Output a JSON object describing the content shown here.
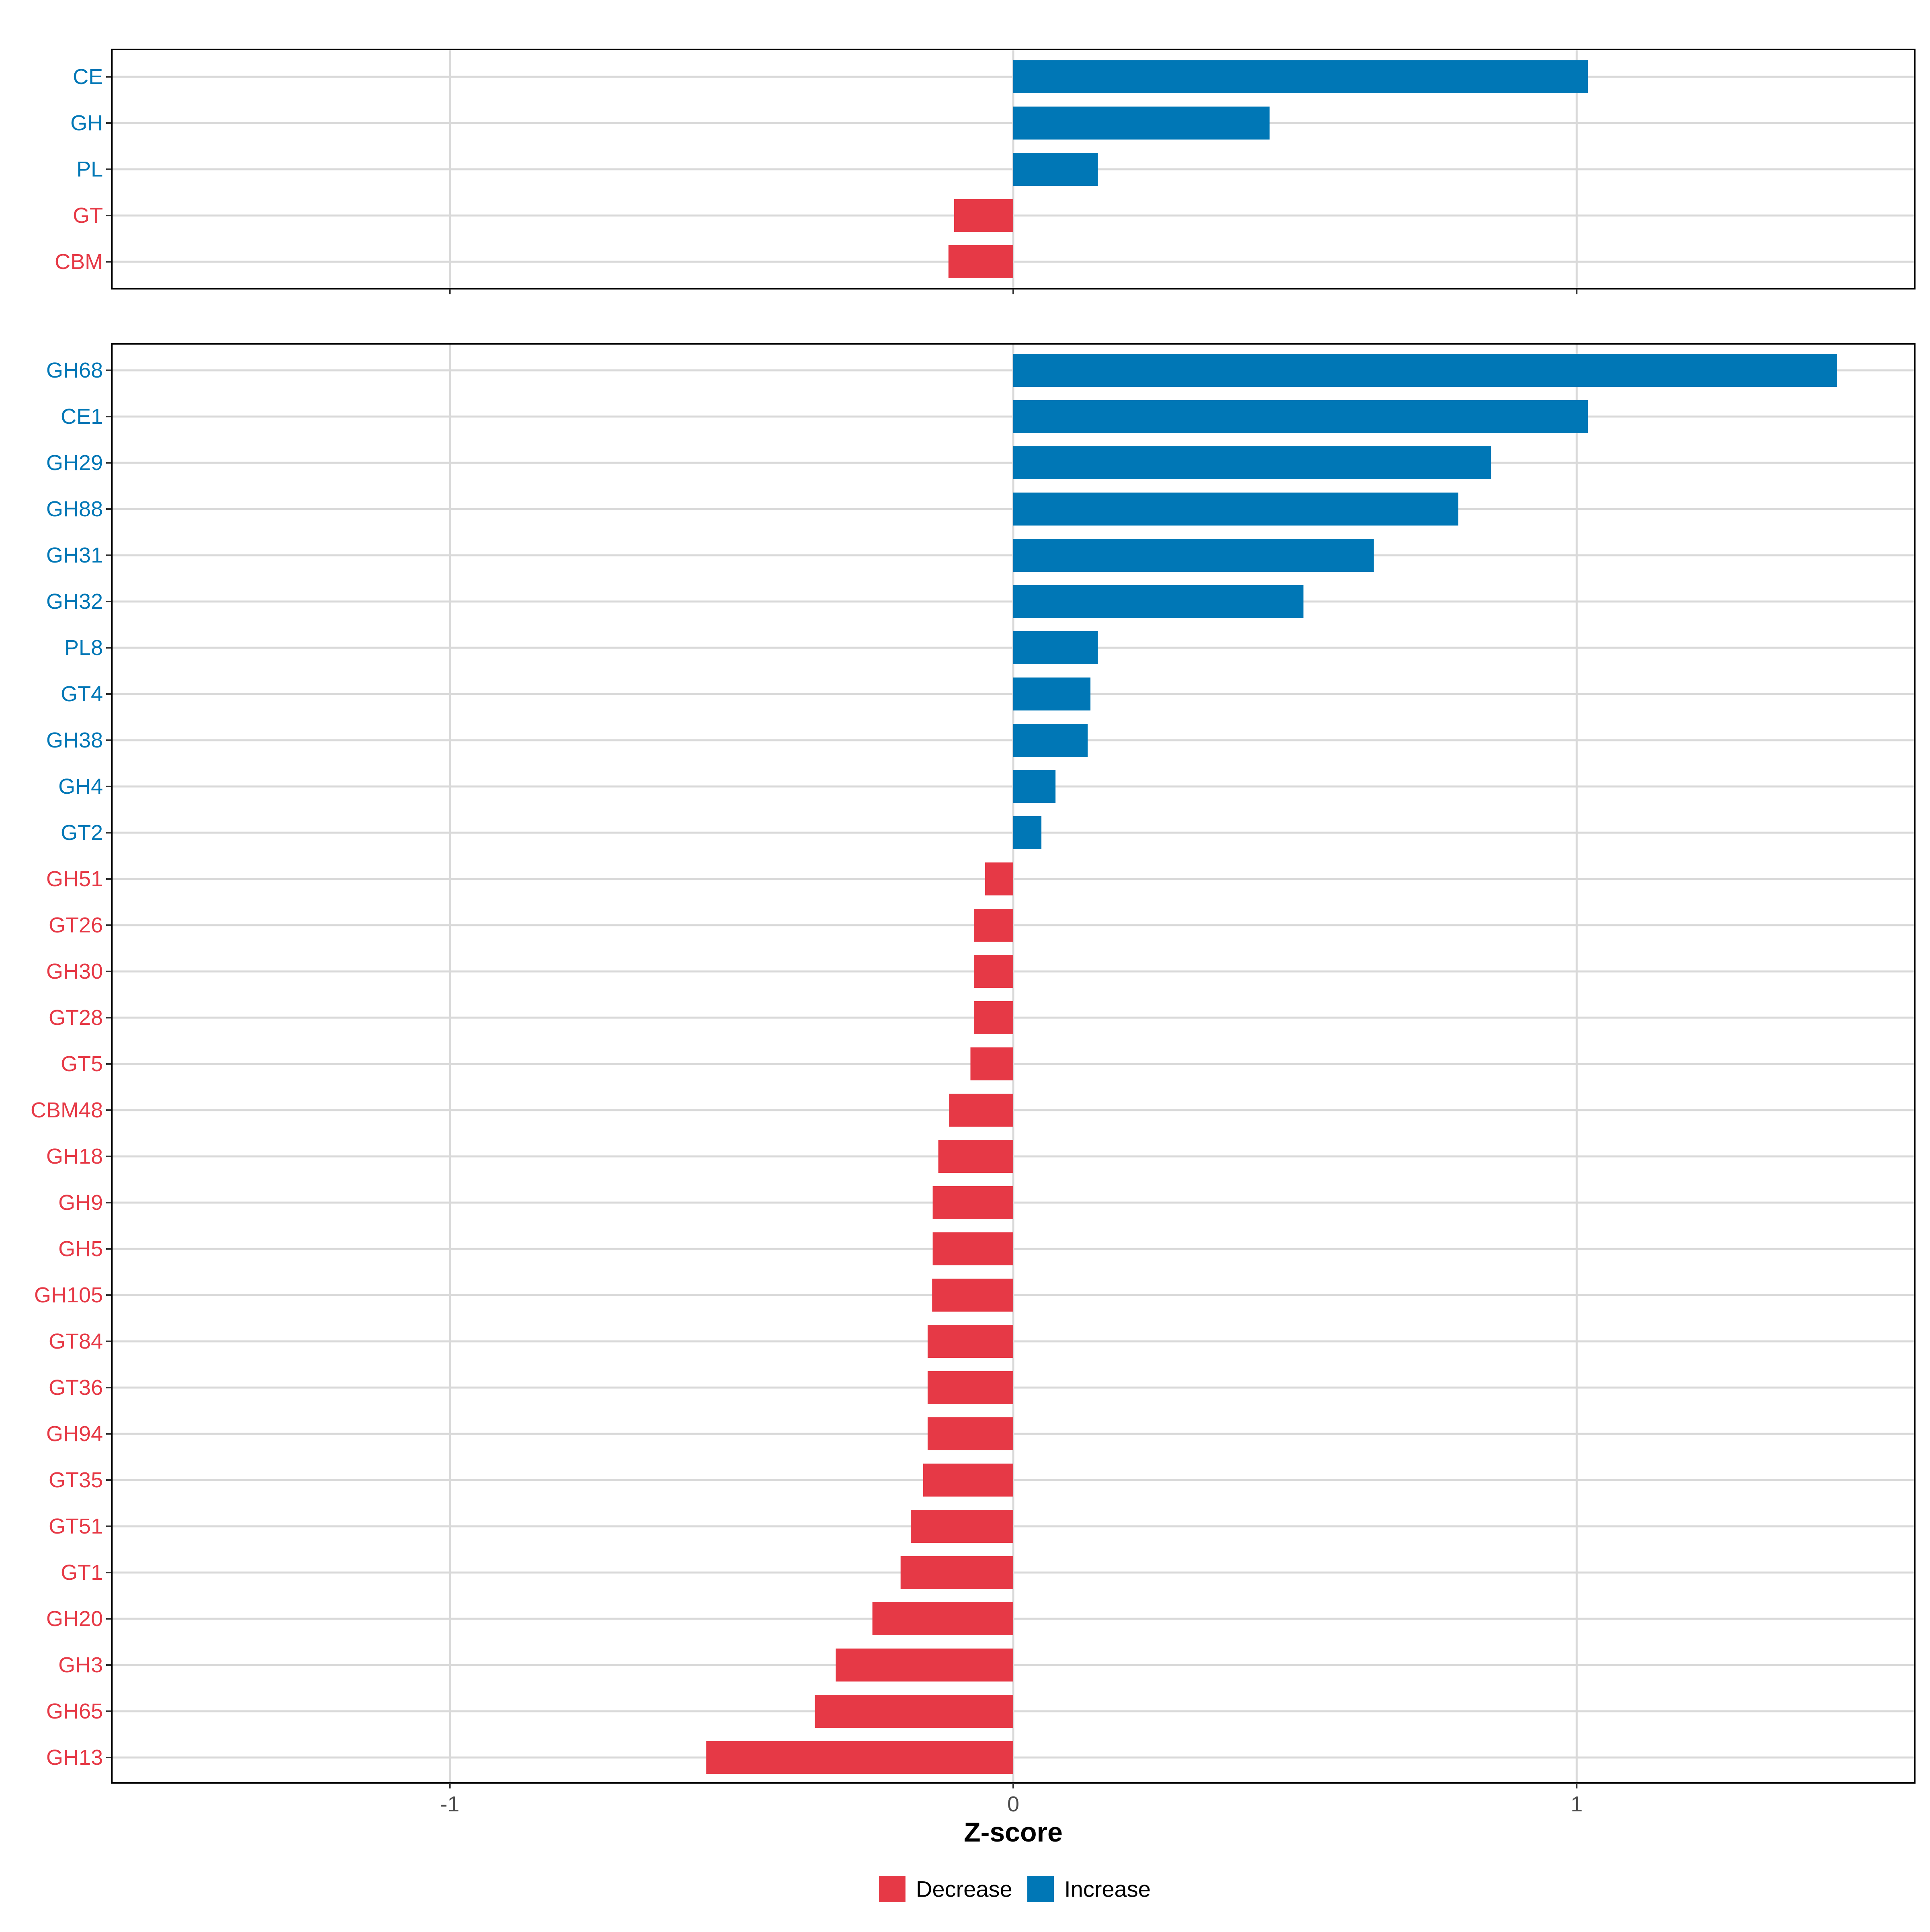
{
  "colors": {
    "increase": "#0077B6",
    "decrease": "#E63946",
    "grid": "#D9D9D9",
    "frame": "#000000"
  },
  "chart_data": [
    {
      "type": "bar",
      "orientation": "horizontal",
      "panel": "top",
      "categories": [
        "CE",
        "GH",
        "PL",
        "GT",
        "CBM"
      ],
      "values": [
        1.02,
        0.455,
        0.15,
        -0.105,
        -0.115
      ],
      "xlim": [
        -1.6,
        1.6
      ],
      "xticks": [
        -1,
        0,
        1
      ],
      "grid": true
    },
    {
      "type": "bar",
      "orientation": "horizontal",
      "panel": "bottom",
      "categories": [
        "GH68",
        "CE1",
        "GH29",
        "GH88",
        "GH31",
        "GH32",
        "PL8",
        "GT4",
        "GH38",
        "GH4",
        "GT2",
        "GH51",
        "GT26",
        "GH30",
        "GT28",
        "GT5",
        "CBM48",
        "GH18",
        "GH9",
        "GH5",
        "GH105",
        "GT84",
        "GT36",
        "GH94",
        "GT35",
        "GT51",
        "GT1",
        "GH20",
        "GH3",
        "GH65",
        "GH13"
      ],
      "values": [
        1.462,
        1.02,
        0.848,
        0.79,
        0.64,
        0.515,
        0.15,
        0.137,
        0.132,
        0.075,
        0.05,
        -0.05,
        -0.07,
        -0.07,
        -0.07,
        -0.076,
        -0.114,
        -0.133,
        -0.143,
        -0.143,
        -0.144,
        -0.152,
        -0.152,
        -0.152,
        -0.16,
        -0.182,
        -0.2,
        -0.25,
        -0.315,
        -0.352,
        -0.545
      ],
      "xlim": [
        -1.6,
        1.6
      ],
      "xticks": [
        -1,
        0,
        1
      ],
      "grid": true
    }
  ],
  "axis": {
    "xlabel": "Z-score",
    "tick_labels": [
      "-1",
      "0",
      "1"
    ]
  },
  "legend": {
    "position": "bottom",
    "items": [
      {
        "label": "Decrease",
        "series": "decrease"
      },
      {
        "label": "Increase",
        "series": "increase"
      }
    ]
  }
}
